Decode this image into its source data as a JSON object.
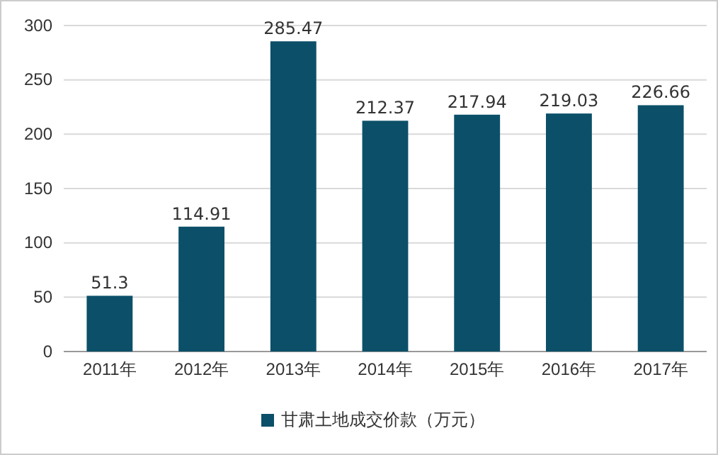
{
  "chart_data": {
    "type": "bar",
    "categories": [
      "2011年",
      "2012年",
      "2013年",
      "2014年",
      "2015年",
      "2016年",
      "2017年"
    ],
    "series": [
      {
        "name": "甘肃土地成交价款（万元）",
        "color": "#0b5068",
        "values": [
          51.3,
          114.91,
          285.47,
          212.37,
          217.94,
          219.03,
          226.66
        ]
      }
    ],
    "ylim": [
      0,
      300
    ],
    "yticks": [
      0,
      50,
      100,
      150,
      200,
      250,
      300
    ],
    "grid": "y",
    "data_labels": true,
    "legend": "bottom"
  }
}
